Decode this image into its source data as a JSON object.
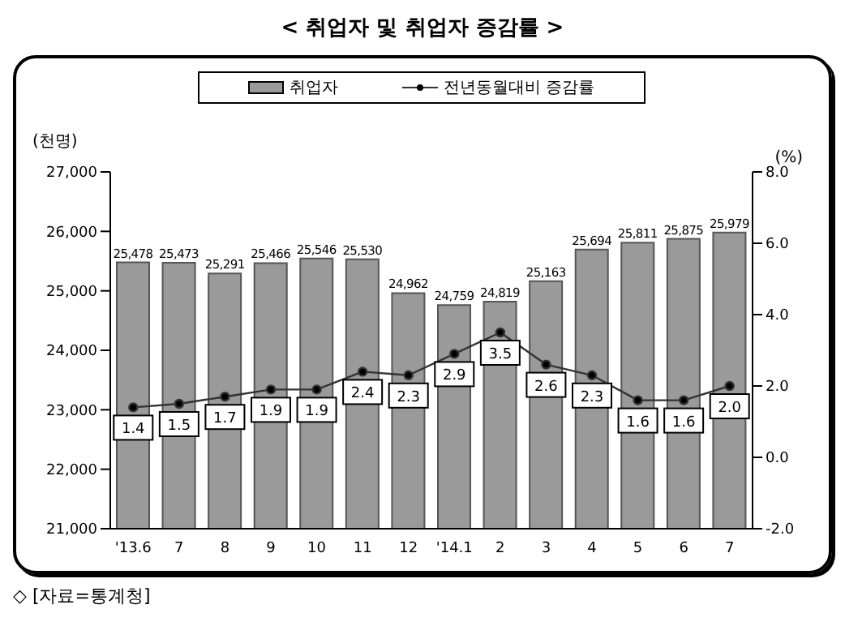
{
  "chart_data": {
    "type": "bar",
    "title": "< 취업자 및 취업자 증감률 >",
    "ylabel": "(천명)",
    "y2label": "(%)",
    "categories": [
      "'13.6",
      "7",
      "8",
      "9",
      "10",
      "11",
      "12",
      "'14.1",
      "2",
      "3",
      "4",
      "5",
      "6",
      "7"
    ],
    "series": [
      {
        "name": "취업자",
        "color": "#9a9a9a",
        "values": [
          25478,
          25473,
          25291,
          25466,
          25546,
          25530,
          24962,
          24759,
          24819,
          25163,
          25694,
          25811,
          25875,
          25979
        ],
        "value_labels": [
          "25,478",
          "25,473",
          "25,291",
          "25,466",
          "25,546",
          "25,530",
          "24,962",
          "24,759",
          "24,819",
          "25,163",
          "25,694",
          "25,811",
          "25,875",
          "25,979"
        ]
      },
      {
        "name": "전년동월대비 증감률",
        "type": "line",
        "axis": "y2",
        "color": "#333333",
        "values": [
          1.4,
          1.5,
          1.7,
          1.9,
          1.9,
          2.4,
          2.3,
          2.9,
          3.5,
          2.6,
          2.3,
          1.6,
          1.6,
          2.0
        ],
        "value_labels": [
          "1.4",
          "1.5",
          "1.7",
          "1.9",
          "1.9",
          "2.4",
          "2.3",
          "2.9",
          "3.5",
          "2.6",
          "2.3",
          "1.6",
          "1.6",
          "2.0"
        ]
      }
    ],
    "ylim": [
      21000,
      27000
    ],
    "yticks": [
      {
        "value": 21000,
        "label": "21,000"
      },
      {
        "value": 22000,
        "label": "22,000"
      },
      {
        "value": 23000,
        "label": "23,000"
      },
      {
        "value": 24000,
        "label": "24,000"
      },
      {
        "value": 25000,
        "label": "25,000"
      },
      {
        "value": 26000,
        "label": "26,000"
      },
      {
        "value": 27000,
        "label": "27,000"
      }
    ],
    "y2lim": [
      -2,
      8
    ],
    "y2ticks": [
      {
        "value": -2,
        "label": "-2.0"
      },
      {
        "value": 0,
        "label": "0.0"
      },
      {
        "value": 2,
        "label": "2.0"
      },
      {
        "value": 4,
        "label": "4.0"
      },
      {
        "value": 6,
        "label": "6.0"
      },
      {
        "value": 8,
        "label": "8.0"
      }
    ],
    "legend": "top",
    "marker": "circle",
    "annotations": [
      "◇ [자료=통계청]"
    ]
  }
}
